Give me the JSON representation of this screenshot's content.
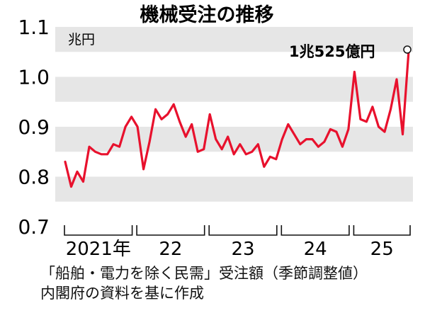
{
  "chart_data": {
    "type": "line",
    "title": "機械受注の推移",
    "unit_label": "兆円",
    "annotation": "1兆525億円",
    "ylim": [
      0.7,
      1.1
    ],
    "yticks": [
      "0.7",
      "0.8",
      "0.9",
      "1.0",
      "1.1"
    ],
    "year_labels": [
      "2021年",
      "22",
      "23",
      "24",
      "25"
    ],
    "line_color": "#e8112d",
    "band_color": "#e6e6e6",
    "series": [
      {
        "values": [
          0.83,
          0.78,
          0.81,
          0.79,
          0.86,
          0.85,
          0.845,
          0.845,
          0.865,
          0.86,
          0.9,
          0.92,
          0.9,
          0.815,
          0.87,
          0.935,
          0.915,
          0.925,
          0.945,
          0.91,
          0.88,
          0.905,
          0.85,
          0.855,
          0.925,
          0.875,
          0.855,
          0.88,
          0.845,
          0.865,
          0.845,
          0.85,
          0.865,
          0.82,
          0.84,
          0.835,
          0.875,
          0.905,
          0.885,
          0.865,
          0.875,
          0.875,
          0.86,
          0.87,
          0.895,
          0.89,
          0.86,
          0.895,
          1.01,
          0.915,
          0.91,
          0.94,
          0.9,
          0.89,
          0.935,
          0.995,
          0.885,
          1.0525
        ]
      }
    ]
  },
  "caption": {
    "line1": "「船舶・電力を除く民需」受注額（季節調整値）",
    "line2": "内閣府の資料を基に作成"
  }
}
